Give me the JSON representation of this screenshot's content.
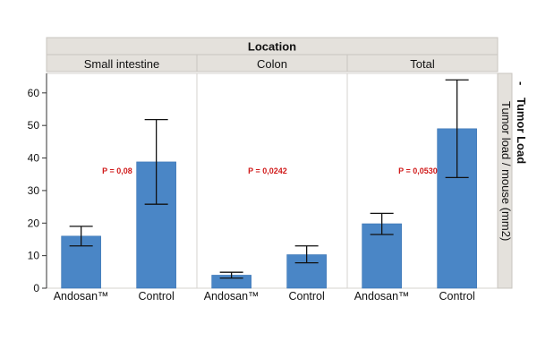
{
  "chart_data": {
    "type": "bar",
    "title": "Location",
    "ylabel": "Tumor load / mouse (mm2)",
    "side_title": "Tumor Load",
    "side_title_prefix": "-",
    "ylim": [
      0,
      66
    ],
    "yticks": [
      0,
      10,
      20,
      30,
      40,
      50,
      60
    ],
    "grid": false,
    "panels": [
      {
        "name": "Small intestine",
        "categories": [
          "Andosan™",
          "Control"
        ],
        "values": [
          16,
          38.8
        ],
        "error_low": [
          13,
          25.8
        ],
        "error_high": [
          19,
          51.8
        ],
        "annotation": "P = 0,08"
      },
      {
        "name": "Colon",
        "categories": [
          "Andosan™",
          "Control"
        ],
        "values": [
          4,
          10.3
        ],
        "error_low": [
          3.1,
          7.8
        ],
        "error_high": [
          4.9,
          13
        ],
        "annotation": "P = 0,0242"
      },
      {
        "name": "Total",
        "categories": [
          "Andosan™",
          "Control"
        ],
        "values": [
          19.8,
          49
        ],
        "error_low": [
          16.5,
          34
        ],
        "error_high": [
          23,
          64
        ],
        "annotation": "P = 0,0530"
      }
    ]
  },
  "colors": {
    "bar": "#4a86c6",
    "bar_edge": "#3a74b4",
    "header_bg": "#e4e1dc",
    "header_border": "#c9c5bf",
    "annotation": "#d01a1a",
    "axis": "#333333"
  }
}
